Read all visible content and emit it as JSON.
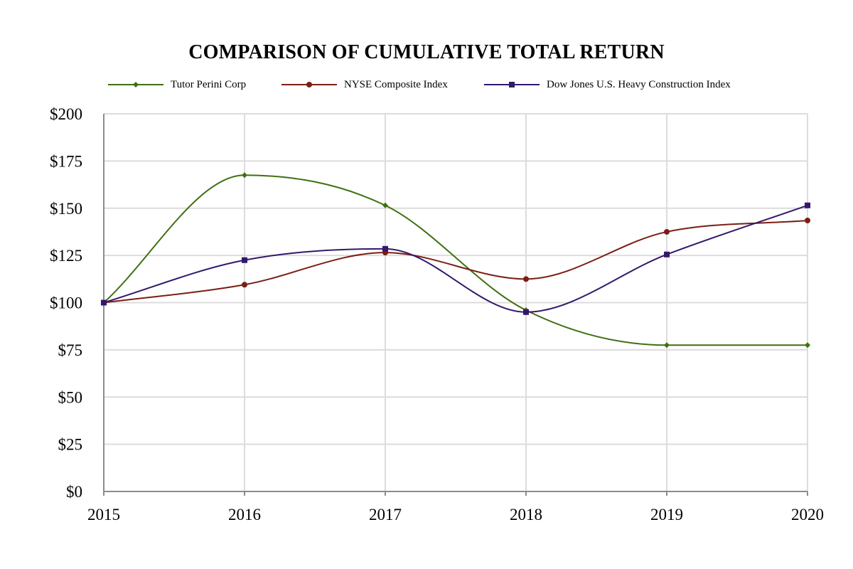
{
  "chart_data": {
    "type": "line",
    "title": "COMPARISON OF CUMULATIVE TOTAL RETURN",
    "xlabel": "",
    "ylabel": "",
    "x": [
      "2015",
      "2016",
      "2017",
      "2018",
      "2019",
      "2020"
    ],
    "ylim": [
      0,
      200
    ],
    "yticks": [
      0,
      25,
      50,
      75,
      100,
      125,
      150,
      175,
      200
    ],
    "ytick_labels": [
      "$0",
      "$25",
      "$50",
      "$75",
      "$100",
      "$125",
      "$150",
      "$175",
      "$200"
    ],
    "grid": true,
    "legend_position": "top",
    "series": [
      {
        "name": "Tutor Perini Corp",
        "color": "#3f6f12",
        "marker": "diamond",
        "values": [
          100,
          167.5,
          151.5,
          96,
          77.5,
          77.5
        ]
      },
      {
        "name": "NYSE Composite Index",
        "color": "#7b1e14",
        "marker": "circle",
        "values": [
          100,
          109.5,
          126.5,
          112.5,
          137.5,
          143.5
        ]
      },
      {
        "name": "Dow Jones U.S. Heavy Construction Index",
        "color": "#33186b",
        "marker": "square",
        "values": [
          100,
          122.5,
          128.5,
          95,
          125.5,
          151.5
        ]
      }
    ]
  }
}
